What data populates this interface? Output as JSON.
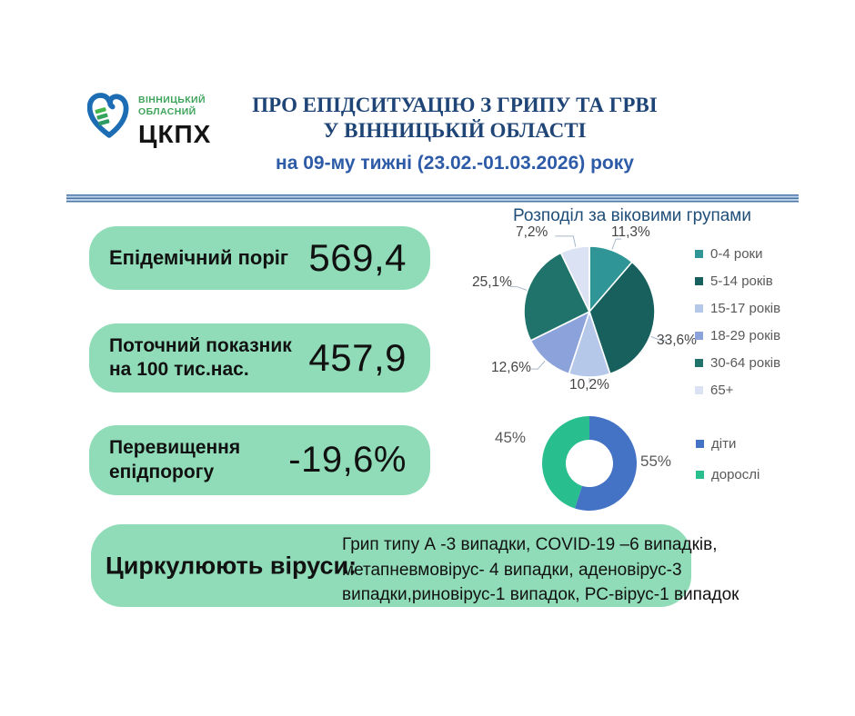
{
  "logo": {
    "org_line1": "ВІННИЦЬКИЙ",
    "org_line2": "ОБЛАСНИЙ",
    "acronym": "ЦКПХ"
  },
  "header": {
    "title_line1": "ПРО ЕПІДСИТУАЦІЮ З ГРИПУ ТА ГРВІ",
    "title_line2": "У ВІННИЦЬКІЙ ОБЛАСТІ",
    "subtitle": "на 09-му тижні (23.02.-01.03.2026) року"
  },
  "stats": {
    "epidemic_threshold": {
      "label": "Епідемічний поріг",
      "value": "569,4"
    },
    "current_rate": {
      "label": "Поточний показник\nна 100 тис.нас.",
      "value": "457,9"
    },
    "threshold_excess": {
      "label": "Перевищення\nепідпорогу",
      "value": "-19,6%"
    }
  },
  "viruses": {
    "label": "Циркулюють віруси:",
    "text": "Грип типу А -3 випадки, COVID-19 –6 випадків,\nметапневмовірус- 4 випадки, аденовірус-3\nвипадки,риновірус-1 випадок, РС-вірус-1 випадок"
  },
  "chart_data": [
    {
      "type": "pie",
      "title": "Розподіл за віковими групами",
      "labels": [
        "0-4 роки",
        "5-14 років",
        "15-17 років",
        "18-29 років",
        "30-64 років",
        "65+"
      ],
      "values": [
        11.3,
        33.6,
        10.2,
        12.6,
        25.1,
        7.2
      ],
      "value_labels": [
        "11,3%",
        "33,6%",
        "10,2%",
        "12,6%",
        "25,1%",
        "7,2%"
      ],
      "colors": [
        "#2f9596",
        "#17605e",
        "#b6c8e9",
        "#8ba2db",
        "#1f736b",
        "#dbe2f4"
      ],
      "legend_position": "right",
      "start_angle_deg": 0,
      "direction": "clockwise"
    },
    {
      "type": "donut",
      "title": "",
      "labels": [
        "діти",
        "дорослі"
      ],
      "values": [
        55,
        45
      ],
      "value_labels": [
        "55%",
        "45%"
      ],
      "colors": [
        "#4473c5",
        "#28be8d"
      ],
      "legend_position": "right",
      "start_angle_deg": 0,
      "direction": "clockwise"
    }
  ],
  "theme": {
    "box_green": "#90dcb8",
    "title_blue": "#1f4577",
    "subtitle_blue": "#2d5ba7",
    "chart_title_blue": "#1f4e79",
    "divider_dark": "#4a76a8",
    "divider_light": "#bcd1e8",
    "legend_text": "#595959",
    "logo_green": "#3fa45c",
    "logo_blue": "#1d6db4"
  }
}
